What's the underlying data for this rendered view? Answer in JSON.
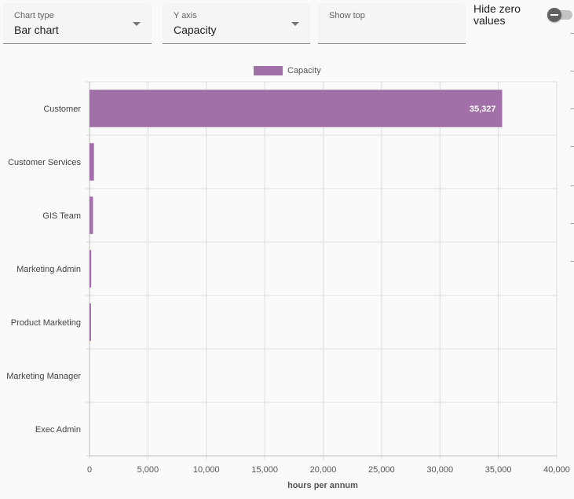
{
  "controls": {
    "chart_type": {
      "label": "Chart type",
      "value": "Bar chart"
    },
    "y_axis": {
      "label": "Y axis",
      "value": "Capacity"
    },
    "show_top": {
      "label": "Show top",
      "value": ""
    },
    "hide_zero": {
      "label": "Hide zero values",
      "enabled": false
    }
  },
  "colors": {
    "bar": "#a270a8",
    "grid": "#dddddd",
    "axis": "#bdbdbd",
    "background": "#fafafa"
  },
  "chart_data": {
    "type": "bar",
    "orientation": "horizontal",
    "categories": [
      "Customer",
      "Customer Services",
      "GIS Team",
      "Marketing Admin",
      "Product Marketing",
      "Marketing Manager",
      "Exec Admin"
    ],
    "series": [
      {
        "name": "Capacity",
        "values": [
          35327,
          380,
          300,
          150,
          130,
          0,
          0
        ]
      }
    ],
    "data_labels": [
      "35,327",
      "",
      "",
      "",
      "",
      "",
      ""
    ],
    "xlabel": "hours per annum",
    "ylabel": "",
    "xlim": [
      0,
      40000
    ],
    "x_ticks": [
      "0",
      "5,000",
      "10,000",
      "15,000",
      "20,000",
      "25,000",
      "30,000",
      "35,000",
      "40,000"
    ],
    "x_tick_values": [
      0,
      5000,
      10000,
      15000,
      20000,
      25000,
      30000,
      35000,
      40000
    ],
    "grid": true,
    "legend": "top-center"
  }
}
